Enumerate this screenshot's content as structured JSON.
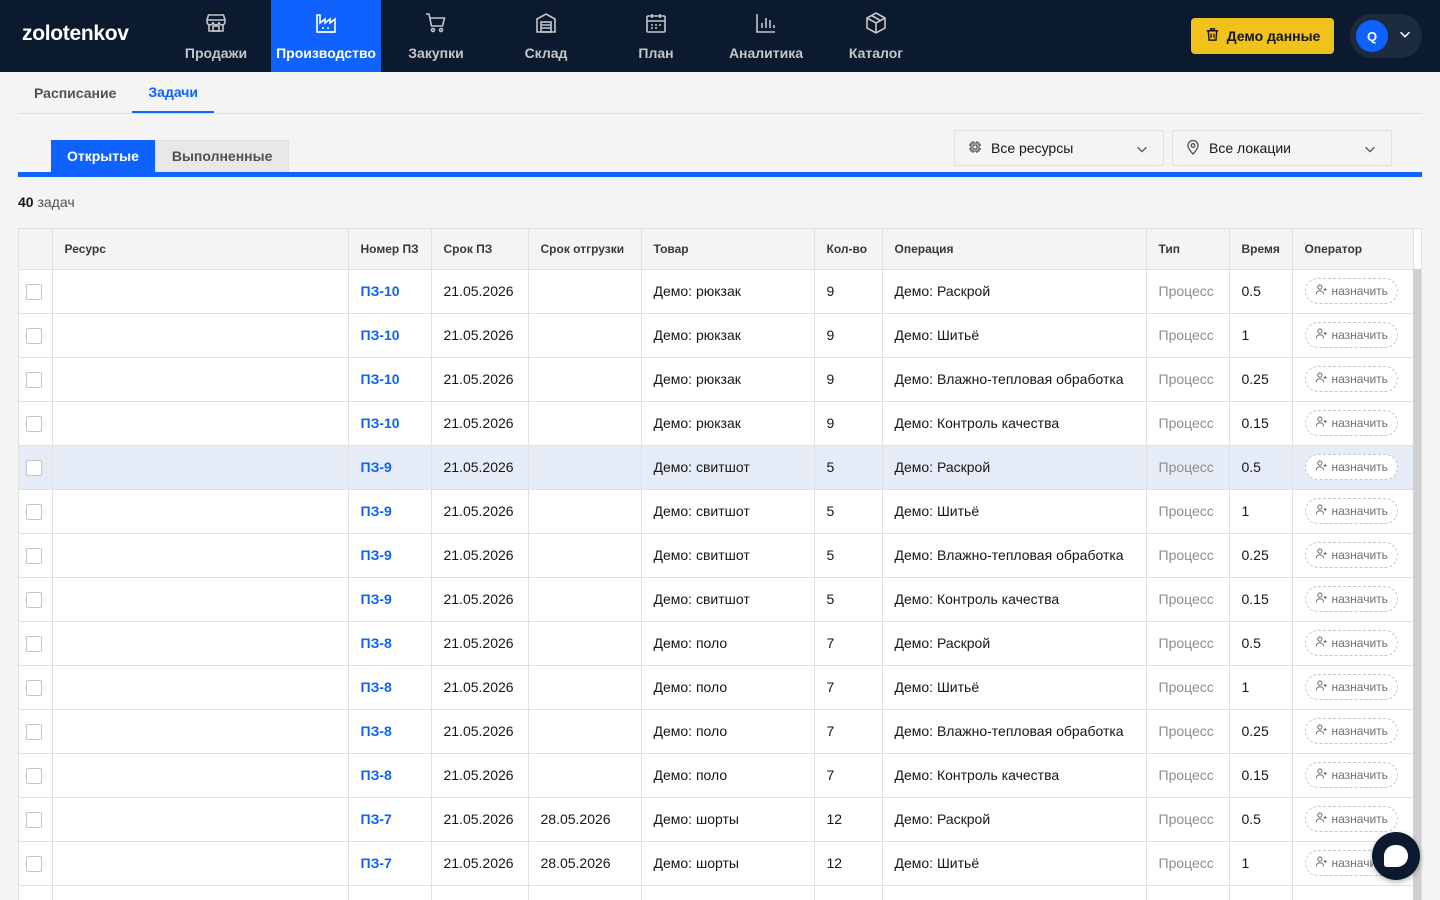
{
  "app": {
    "logo": "zolotenkov"
  },
  "nav": [
    {
      "label": "Продажи",
      "icon": "store-icon",
      "active": false
    },
    {
      "label": "Производство",
      "icon": "factory-icon",
      "active": true
    },
    {
      "label": "Закупки",
      "icon": "cart-icon",
      "active": false
    },
    {
      "label": "Склад",
      "icon": "warehouse-icon",
      "active": false
    },
    {
      "label": "План",
      "icon": "calendar-icon",
      "active": false
    },
    {
      "label": "Аналитика",
      "icon": "bar-chart-icon",
      "active": false
    },
    {
      "label": "Каталог",
      "icon": "package-icon",
      "active": false
    }
  ],
  "header": {
    "demo_label": "Демо данные",
    "user_initial": "Q"
  },
  "page_tabs": [
    {
      "label": "Расписание",
      "active": false
    },
    {
      "label": "Задачи",
      "active": true
    }
  ],
  "sub_tabs": [
    {
      "label": "Открытые",
      "active": true
    },
    {
      "label": "Выполненные",
      "active": false
    }
  ],
  "filters": {
    "resources": "Все ресурсы",
    "locations": "Все локации"
  },
  "summary": {
    "count": "40",
    "count_label": "задач"
  },
  "table": {
    "columns": [
      "Ресурс",
      "Номер ПЗ",
      "Срок ПЗ",
      "Срок отгрузки",
      "Товар",
      "Кол-во",
      "Операция",
      "Тип",
      "Время",
      "Оператор"
    ],
    "assign_label": "назначить",
    "rows": [
      {
        "resource": "",
        "pz": "ПЗ-10",
        "due": "21.05.2026",
        "ship": "",
        "product": "Демо: рюкзак",
        "qty": "9",
        "operation": "Демо: Раскрой",
        "type": "Процесс",
        "time": "0.5"
      },
      {
        "resource": "",
        "pz": "ПЗ-10",
        "due": "21.05.2026",
        "ship": "",
        "product": "Демо: рюкзак",
        "qty": "9",
        "operation": "Демо: Шитьё",
        "type": "Процесс",
        "time": "1"
      },
      {
        "resource": "",
        "pz": "ПЗ-10",
        "due": "21.05.2026",
        "ship": "",
        "product": "Демо: рюкзак",
        "qty": "9",
        "operation": "Демо: Влажно-тепловая обработка",
        "type": "Процесс",
        "time": "0.25"
      },
      {
        "resource": "",
        "pz": "ПЗ-10",
        "due": "21.05.2026",
        "ship": "",
        "product": "Демо: рюкзак",
        "qty": "9",
        "operation": "Демо: Контроль качества",
        "type": "Процесс",
        "time": "0.15"
      },
      {
        "resource": "",
        "pz": "ПЗ-9",
        "due": "21.05.2026",
        "ship": "",
        "product": "Демо: свитшот",
        "qty": "5",
        "operation": "Демо: Раскрой",
        "type": "Процесс",
        "time": "0.5",
        "highlighted": true
      },
      {
        "resource": "",
        "pz": "ПЗ-9",
        "due": "21.05.2026",
        "ship": "",
        "product": "Демо: свитшот",
        "qty": "5",
        "operation": "Демо: Шитьё",
        "type": "Процесс",
        "time": "1"
      },
      {
        "resource": "",
        "pz": "ПЗ-9",
        "due": "21.05.2026",
        "ship": "",
        "product": "Демо: свитшот",
        "qty": "5",
        "operation": "Демо: Влажно-тепловая обработка",
        "type": "Процесс",
        "time": "0.25"
      },
      {
        "resource": "",
        "pz": "ПЗ-9",
        "due": "21.05.2026",
        "ship": "",
        "product": "Демо: свитшот",
        "qty": "5",
        "operation": "Демо: Контроль качества",
        "type": "Процесс",
        "time": "0.15"
      },
      {
        "resource": "",
        "pz": "ПЗ-8",
        "due": "21.05.2026",
        "ship": "",
        "product": "Демо: поло",
        "qty": "7",
        "operation": "Демо: Раскрой",
        "type": "Процесс",
        "time": "0.5"
      },
      {
        "resource": "",
        "pz": "ПЗ-8",
        "due": "21.05.2026",
        "ship": "",
        "product": "Демо: поло",
        "qty": "7",
        "operation": "Демо: Шитьё",
        "type": "Процесс",
        "time": "1"
      },
      {
        "resource": "",
        "pz": "ПЗ-8",
        "due": "21.05.2026",
        "ship": "",
        "product": "Демо: поло",
        "qty": "7",
        "operation": "Демо: Влажно-тепловая обработка",
        "type": "Процесс",
        "time": "0.25"
      },
      {
        "resource": "",
        "pz": "ПЗ-8",
        "due": "21.05.2026",
        "ship": "",
        "product": "Демо: поло",
        "qty": "7",
        "operation": "Демо: Контроль качества",
        "type": "Процесс",
        "time": "0.15"
      },
      {
        "resource": "",
        "pz": "ПЗ-7",
        "due": "21.05.2026",
        "ship": "28.05.2026",
        "product": "Демо: шорты",
        "qty": "12",
        "operation": "Демо: Раскрой",
        "type": "Процесс",
        "time": "0.5"
      },
      {
        "resource": "",
        "pz": "ПЗ-7",
        "due": "21.05.2026",
        "ship": "28.05.2026",
        "product": "Демо: шорты",
        "qty": "12",
        "operation": "Демо: Шитьё",
        "type": "Процесс",
        "time": "1"
      },
      {
        "resource": "",
        "pz": "",
        "due": "",
        "ship": "",
        "product": "",
        "qty": "",
        "operation": "",
        "type": "",
        "time": ""
      }
    ]
  },
  "colors": {
    "nav_bg": "#0b1a2e",
    "accent": "#0f62fe",
    "demo_button": "#f1c21b",
    "row_highlight": "#e5ecf8"
  }
}
